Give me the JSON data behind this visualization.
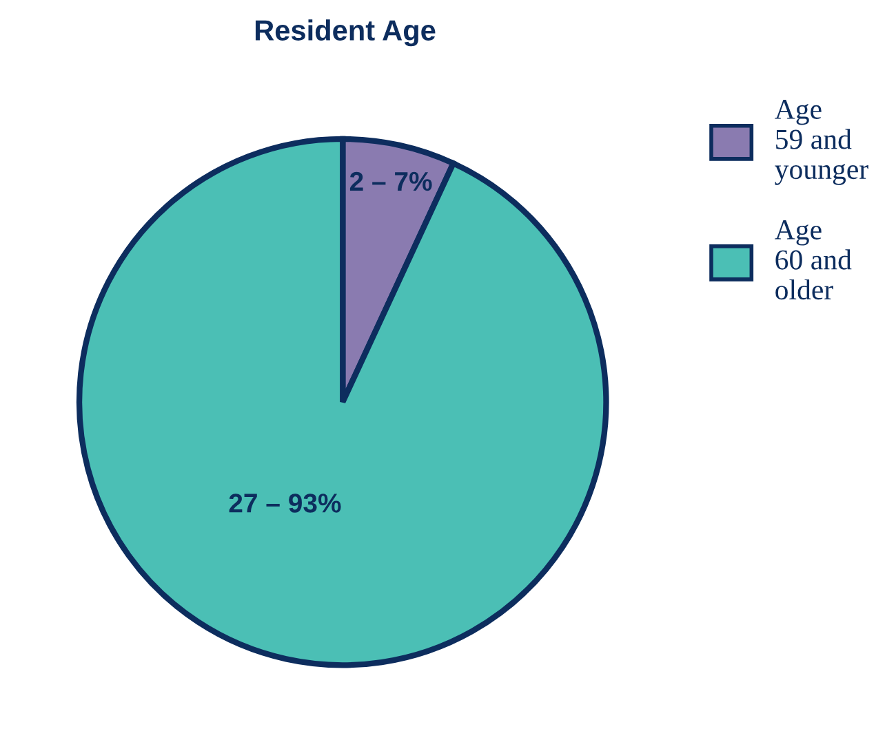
{
  "chart_data": {
    "type": "pie",
    "title": "Resident Age",
    "categories": [
      "Age\n59 and\nyounger",
      "Age\n60 and\nolder"
    ],
    "values": [
      2,
      27
    ],
    "colors": [
      "#8a7bb0",
      "#4bbfb5"
    ],
    "value_labels": [
      "2 – 7%",
      "27 – 93%"
    ],
    "legend": "right"
  }
}
